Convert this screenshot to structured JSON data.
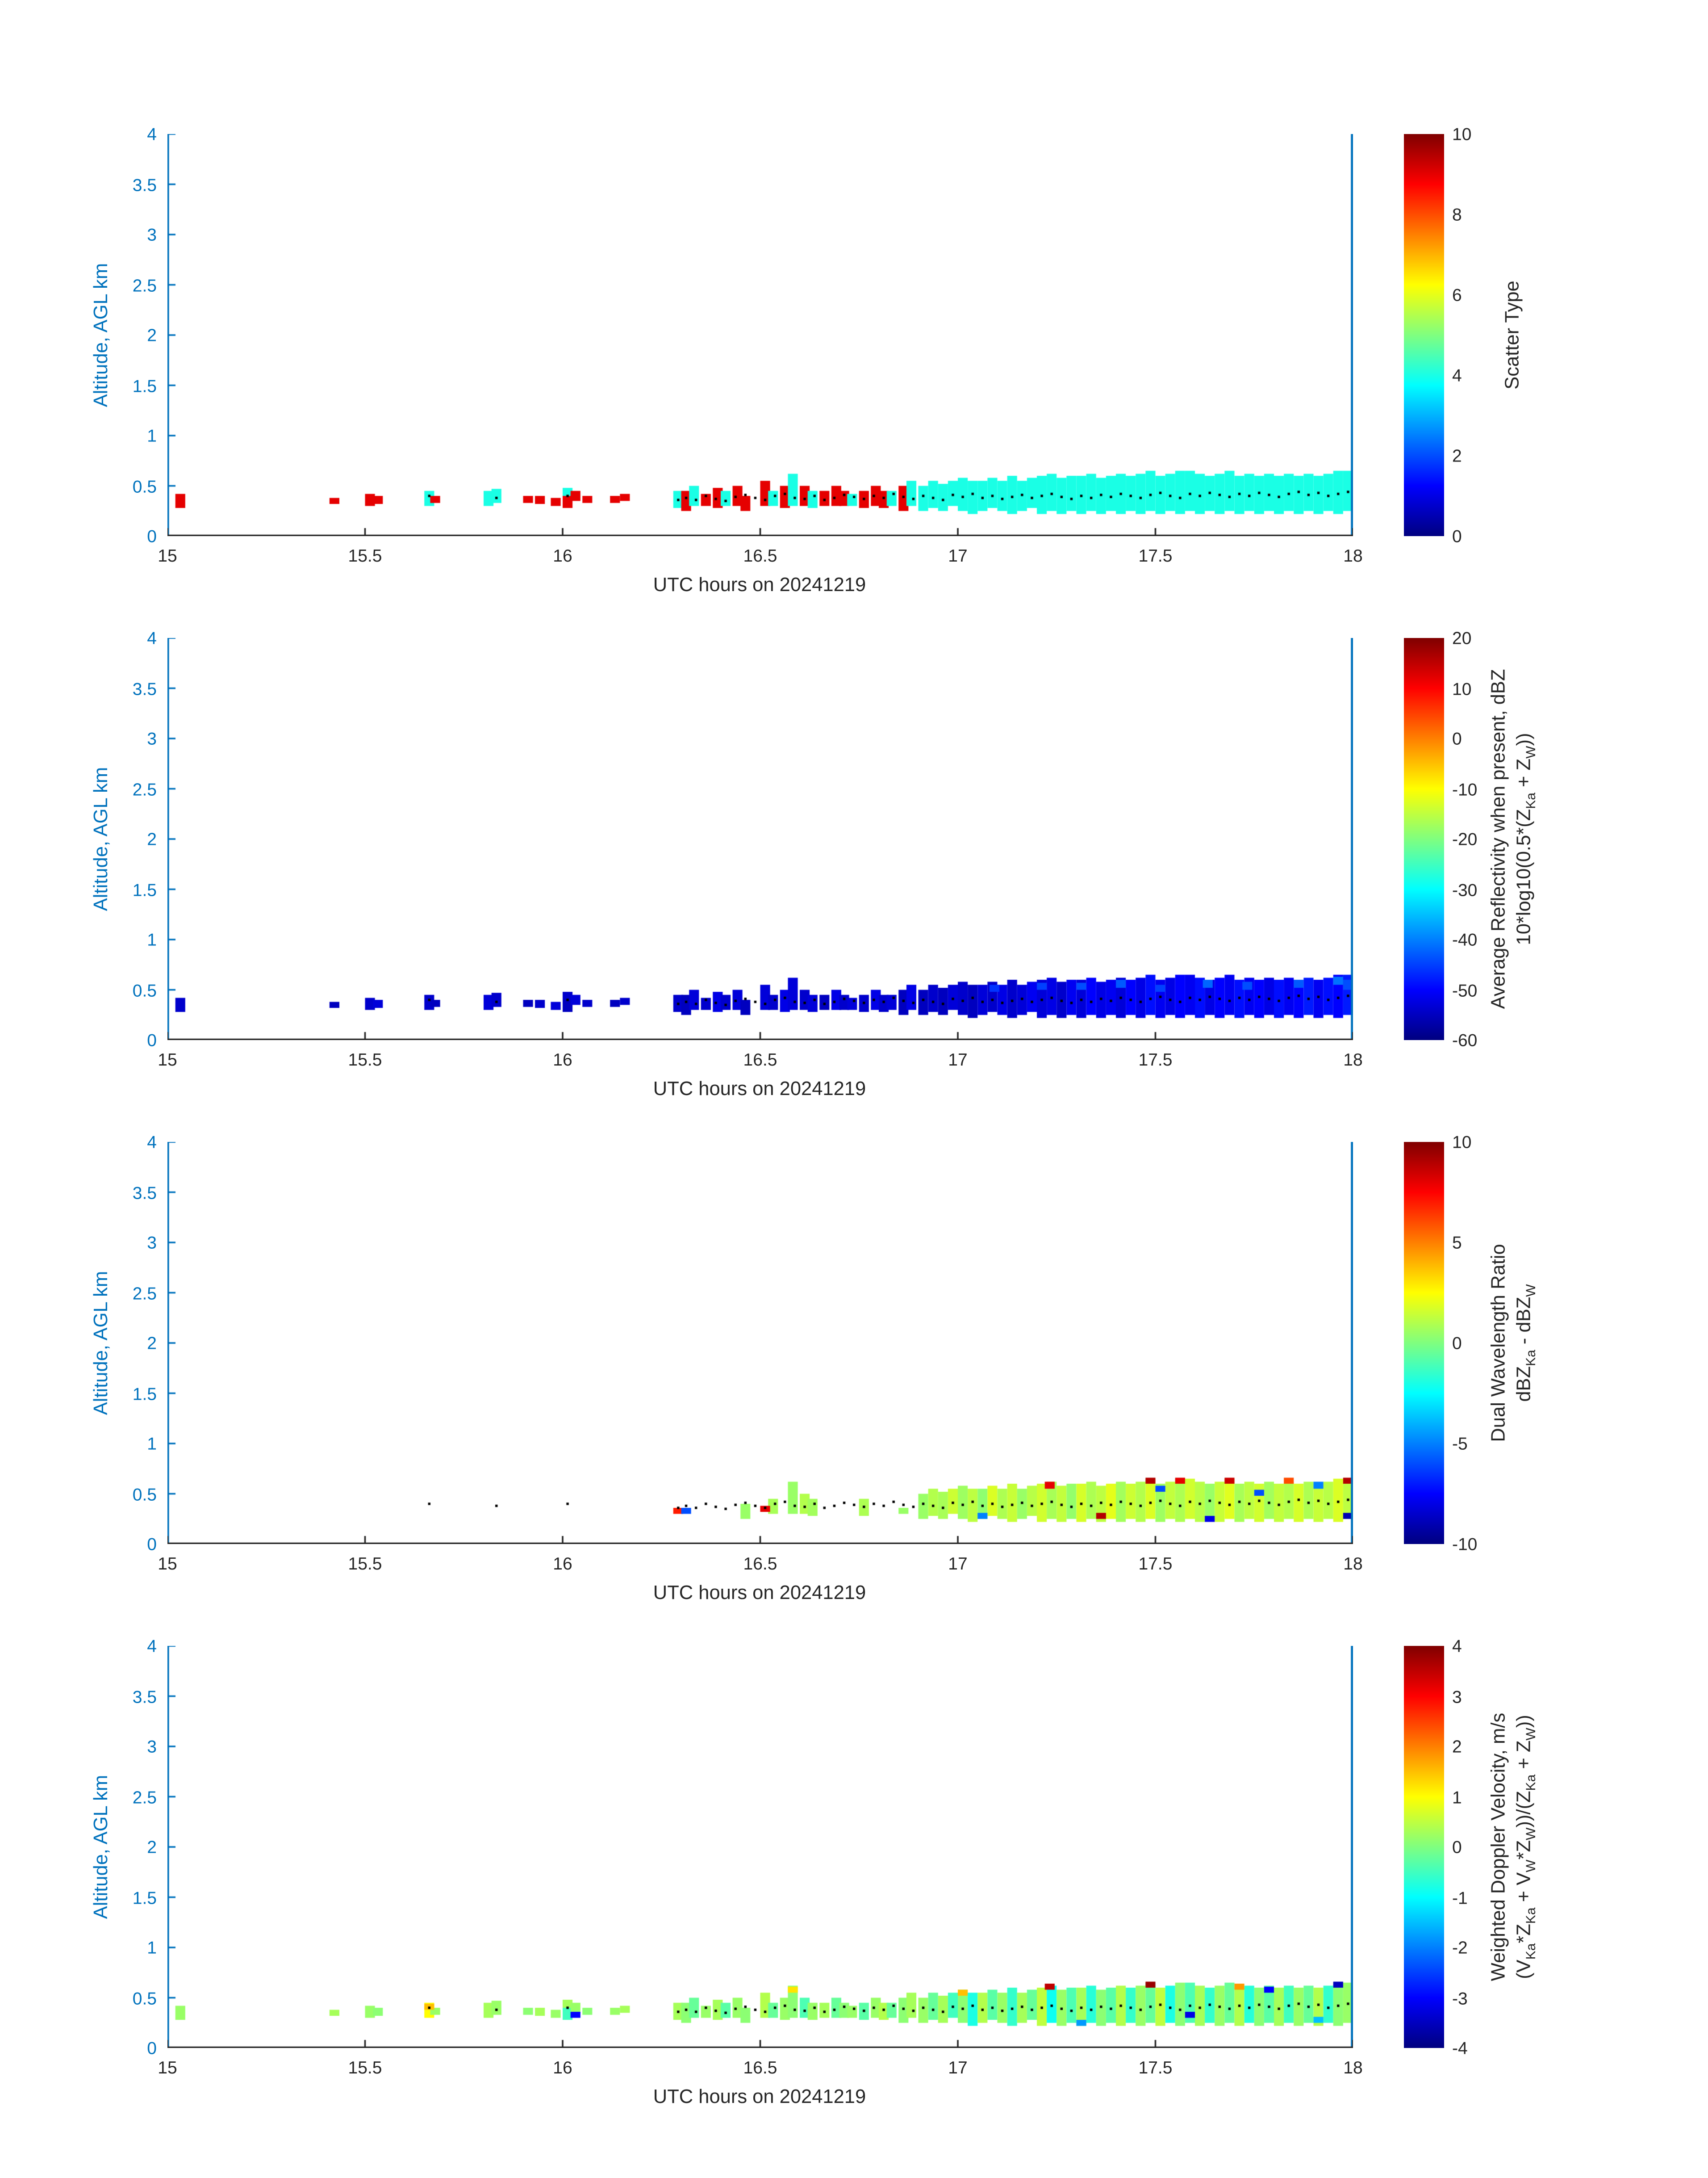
{
  "chart_data": {
    "type": "heatmap",
    "xlabel": "UTC hours on 20241219",
    "ylabel": "Altitude, AGL km",
    "xlim": [
      15,
      18
    ],
    "ylim": [
      0,
      4
    ],
    "xticks": [
      15,
      15.5,
      16,
      16.5,
      17,
      17.5,
      18
    ],
    "xtick_labels": [
      "15",
      "15.5",
      "16",
      "16.5",
      "17",
      "17.5",
      "18"
    ],
    "yticks": [
      0,
      0.5,
      1,
      1.5,
      2,
      2.5,
      3,
      3.5,
      4
    ],
    "ytick_labels": [
      "0",
      "0.5",
      "1",
      "1.5",
      "2",
      "2.5",
      "3",
      "3.5",
      "4"
    ],
    "colormap": "jet",
    "grid": false,
    "colors": {
      "axis_y": "#0072BD",
      "axis_x": "#262626",
      "end_line": "#0072BD",
      "dot": "#000000",
      "background": "#ffffff"
    },
    "cell_dt": 0.025,
    "panels": [
      {
        "id": "scatter-type",
        "clim": [
          0,
          10
        ],
        "cticks": [
          0,
          2,
          4,
          6,
          8,
          10
        ],
        "cbar_title": [
          [
            {
              "t": "Scatter Type"
            }
          ]
        ]
      },
      {
        "id": "average-reflectivity",
        "clim": [
          -60,
          20
        ],
        "cticks": [
          -60,
          -50,
          -40,
          -30,
          -20,
          -10,
          0,
          10,
          20
        ],
        "cbar_title": [
          [
            {
              "t": "Average Reflectivity when present, dBZ"
            }
          ],
          [
            {
              "t": "10*log10(0.5*(Z"
            },
            {
              "s": "Ka"
            },
            {
              "t": " + Z"
            },
            {
              "s": "W"
            },
            {
              "t": "))"
            }
          ]
        ]
      },
      {
        "id": "dual-wavelength-ratio",
        "clim": [
          -10,
          10
        ],
        "cticks": [
          -10,
          -5,
          0,
          5,
          10
        ],
        "cbar_title": [
          [
            {
              "t": "Dual Wavelength Ratio"
            }
          ],
          [
            {
              "t": "dBZ"
            },
            {
              "s": "Ka"
            },
            {
              "t": " - dBZ"
            },
            {
              "s": "W"
            }
          ]
        ]
      },
      {
        "id": "weighted-doppler-velocity",
        "clim": [
          -4,
          4
        ],
        "cticks": [
          -4,
          -3,
          -2,
          -1,
          0,
          1,
          2,
          3,
          4
        ],
        "cbar_title": [
          [
            {
              "t": "Weighted Doppler Velocity, m/s"
            }
          ],
          [
            {
              "t": "(V"
            },
            {
              "s": "Ka"
            },
            {
              "t": "*Z"
            },
            {
              "s": "Ka"
            },
            {
              "t": " + V"
            },
            {
              "s": "W"
            },
            {
              "t": "*Z"
            },
            {
              "s": "W"
            },
            {
              "t": "))/(Z"
            },
            {
              "s": "Ka"
            },
            {
              "t": " + Z"
            },
            {
              "s": "W"
            },
            {
              "t": "))"
            }
          ]
        ]
      }
    ],
    "cells_format": [
      "t_utc_hours",
      "alt_bottom_km",
      "alt_top_km",
      "scatter_type",
      "reflectivity_dBZ",
      "dwr_dB",
      "doppler_ms"
    ],
    "cells": [
      [
        15.02,
        0.28,
        0.42,
        9,
        -54,
        null,
        0.2
      ],
      [
        15.41,
        0.32,
        0.38,
        9,
        -55,
        null,
        0.3
      ],
      [
        15.5,
        0.3,
        0.42,
        9,
        -54,
        null,
        0.2
      ],
      [
        15.52,
        0.32,
        0.4,
        9,
        -53,
        null,
        0.1
      ],
      [
        15.65,
        0.3,
        0.45,
        4,
        -54,
        null,
        1.0
      ],
      [
        15.665,
        0.33,
        0.4,
        9,
        -55,
        null,
        0.2
      ],
      [
        15.8,
        0.3,
        0.45,
        4,
        -53,
        null,
        0.3
      ],
      [
        15.82,
        0.33,
        0.47,
        4,
        -54,
        null,
        0.2
      ],
      [
        15.9,
        0.33,
        0.4,
        9,
        -55,
        null,
        0.1
      ],
      [
        15.93,
        0.32,
        0.4,
        9,
        -54,
        null,
        0.3
      ],
      [
        15.97,
        0.3,
        0.38,
        9,
        -53,
        null,
        0.2
      ],
      [
        16.0,
        0.4,
        0.48,
        4,
        -54,
        null,
        0.3
      ],
      [
        16.0,
        0.28,
        0.4,
        9,
        -55,
        null,
        -0.5
      ],
      [
        16.02,
        0.35,
        0.45,
        9,
        -53,
        null,
        0.2
      ],
      [
        16.05,
        0.33,
        0.4,
        9,
        -54,
        null,
        0.1
      ],
      [
        16.12,
        0.33,
        0.4,
        9,
        -55,
        null,
        0.2
      ],
      [
        16.145,
        0.35,
        0.42,
        9,
        -54,
        null,
        0.3
      ],
      [
        16.28,
        0.28,
        0.45,
        4,
        -54,
        null,
        0.3
      ],
      [
        16.3,
        0.25,
        0.45,
        9,
        -55,
        null,
        0.1
      ],
      [
        16.32,
        0.3,
        0.5,
        4,
        -53,
        null,
        -0.2
      ],
      [
        16.35,
        0.3,
        0.42,
        9,
        -54,
        null,
        0.2
      ],
      [
        16.38,
        0.28,
        0.48,
        9,
        -52,
        null,
        0.3
      ],
      [
        16.4,
        0.3,
        0.45,
        4,
        -54,
        null,
        -0.3
      ],
      [
        16.43,
        0.3,
        0.5,
        9,
        -53,
        null,
        0.2
      ],
      [
        16.45,
        0.25,
        0.4,
        9,
        -55,
        0.5,
        0.1
      ],
      [
        16.5,
        0.3,
        0.55,
        9,
        -53,
        null,
        0.4
      ],
      [
        16.52,
        0.3,
        0.45,
        4,
        -54,
        0.8,
        -0.2
      ],
      [
        16.55,
        0.28,
        0.5,
        9,
        -52,
        null,
        0.2
      ],
      [
        16.57,
        0.3,
        0.62,
        4,
        -53,
        0.5,
        0.1
      ],
      [
        16.6,
        0.3,
        0.5,
        9,
        -54,
        1.0,
        -0.4
      ],
      [
        16.62,
        0.28,
        0.45,
        4,
        -53,
        0.7,
        0.2
      ],
      [
        16.65,
        0.3,
        0.45,
        9,
        -55,
        null,
        0.3
      ],
      [
        16.68,
        0.3,
        0.5,
        9,
        -52,
        null,
        -0.2
      ],
      [
        16.7,
        0.3,
        0.45,
        9,
        -54,
        null,
        0.1
      ],
      [
        16.72,
        0.3,
        0.42,
        4,
        -53,
        null,
        0.2
      ],
      [
        16.75,
        0.28,
        0.45,
        9,
        -54,
        0.9,
        -0.3
      ],
      [
        16.78,
        0.3,
        0.5,
        9,
        -52,
        null,
        0.2
      ],
      [
        16.8,
        0.28,
        0.45,
        9,
        -54,
        null,
        0.4
      ],
      [
        16.82,
        0.3,
        0.45,
        4,
        -53,
        null,
        -0.2
      ],
      [
        16.85,
        0.25,
        0.5,
        9,
        -55,
        null,
        0.1
      ],
      [
        16.87,
        0.3,
        0.55,
        4,
        -52,
        null,
        0.3
      ],
      [
        16.9,
        0.25,
        0.5,
        4,
        -55,
        0.5,
        0.2
      ],
      [
        16.925,
        0.28,
        0.55,
        4,
        -54,
        1.0,
        -0.2
      ],
      [
        16.95,
        0.25,
        0.52,
        4,
        -55,
        0.8,
        0.3
      ],
      [
        16.975,
        0.3,
        0.55,
        4,
        -53,
        1.5,
        -0.5
      ],
      [
        17.0,
        0.25,
        0.58,
        4,
        -54,
        0.6,
        0.1
      ],
      [
        17.025,
        0.22,
        0.55,
        4,
        -55,
        1.2,
        -0.8
      ],
      [
        17.05,
        0.25,
        0.55,
        4,
        -53,
        0.3,
        0.4
      ],
      [
        17.075,
        0.28,
        0.58,
        4,
        -54,
        1.8,
        -0.3
      ],
      [
        17.1,
        0.25,
        0.55,
        4,
        -52,
        0.9,
        0.2
      ],
      [
        17.125,
        0.22,
        0.6,
        4,
        -54,
        1.4,
        -0.6
      ],
      [
        17.15,
        0.25,
        0.55,
        4,
        -53,
        0.5,
        0.3
      ],
      [
        17.175,
        0.28,
        0.58,
        4,
        -51,
        1.1,
        -0.2
      ],
      [
        17.2,
        0.22,
        0.6,
        4,
        -53,
        1.6,
        0.5
      ],
      [
        17.225,
        0.25,
        0.62,
        4,
        -52,
        0.8,
        -0.9
      ],
      [
        17.25,
        0.22,
        0.58,
        4,
        -54,
        1.3,
        0.2
      ],
      [
        17.275,
        0.25,
        0.6,
        4,
        -51,
        0.4,
        -0.4
      ],
      [
        17.3,
        0.22,
        0.6,
        4,
        -53,
        1.7,
        0.3
      ],
      [
        17.325,
        0.25,
        0.62,
        4,
        -50,
        0.9,
        -0.7
      ],
      [
        17.35,
        0.22,
        0.58,
        4,
        -52,
        1.2,
        0.1
      ],
      [
        17.375,
        0.25,
        0.6,
        4,
        -51,
        2.0,
        -0.3
      ],
      [
        17.4,
        0.22,
        0.62,
        4,
        -53,
        0.7,
        0.4
      ],
      [
        17.425,
        0.25,
        0.6,
        4,
        -50,
        1.5,
        -0.6
      ],
      [
        17.45,
        0.22,
        0.62,
        4,
        -52,
        1.0,
        0.2
      ],
      [
        17.475,
        0.25,
        0.65,
        4,
        -49,
        1.8,
        -0.2
      ],
      [
        17.5,
        0.22,
        0.6,
        4,
        -51,
        0.6,
        0.5
      ],
      [
        17.525,
        0.25,
        0.62,
        4,
        -52,
        1.3,
        -0.8
      ],
      [
        17.55,
        0.22,
        0.65,
        4,
        -50,
        0.9,
        0.1
      ],
      [
        17.575,
        0.25,
        0.65,
        4,
        -51,
        1.6,
        -0.4
      ],
      [
        17.6,
        0.22,
        0.62,
        4,
        -49,
        1.1,
        0.3
      ],
      [
        17.625,
        0.25,
        0.6,
        4,
        -52,
        0.5,
        -0.6
      ],
      [
        17.65,
        0.22,
        0.62,
        4,
        -50,
        1.4,
        0.2
      ],
      [
        17.675,
        0.25,
        0.65,
        4,
        -51,
        1.9,
        -0.2
      ],
      [
        17.7,
        0.22,
        0.6,
        4,
        -49,
        0.8,
        0.4
      ],
      [
        17.725,
        0.25,
        0.62,
        4,
        -51,
        1.2,
        -0.7
      ],
      [
        17.75,
        0.22,
        0.6,
        4,
        -50,
        1.6,
        0.1
      ],
      [
        17.775,
        0.25,
        0.62,
        4,
        -52,
        0.7,
        -0.3
      ],
      [
        17.8,
        0.22,
        0.6,
        4,
        -49,
        1.3,
        0.3
      ],
      [
        17.825,
        0.25,
        0.62,
        4,
        -51,
        1.0,
        -0.5
      ],
      [
        17.85,
        0.22,
        0.6,
        4,
        -50,
        1.7,
        0.2
      ],
      [
        17.875,
        0.25,
        0.62,
        4,
        -48,
        0.9,
        -0.2
      ],
      [
        17.9,
        0.22,
        0.6,
        4,
        -51,
        1.4,
        0.4
      ],
      [
        17.925,
        0.25,
        0.62,
        4,
        -49,
        1.1,
        -0.6
      ],
      [
        17.95,
        0.22,
        0.65,
        4,
        -50,
        1.8,
        0.1
      ],
      [
        17.975,
        0.25,
        0.65,
        4,
        -48,
        1.2,
        0.2
      ]
    ],
    "extra_cells_format": [
      "panel_index",
      "t_utc_hours",
      "alt_bottom_km",
      "alt_top_km",
      "value"
    ],
    "extra_cells": [
      [
        1,
        17.08,
        0.48,
        0.55,
        -46
      ],
      [
        1,
        17.2,
        0.5,
        0.57,
        -45
      ],
      [
        1,
        17.3,
        0.5,
        0.57,
        -44
      ],
      [
        1,
        17.4,
        0.52,
        0.6,
        -43
      ],
      [
        1,
        17.5,
        0.48,
        0.55,
        -45
      ],
      [
        1,
        17.62,
        0.52,
        0.6,
        -42
      ],
      [
        1,
        17.72,
        0.5,
        0.58,
        -44
      ],
      [
        1,
        17.85,
        0.52,
        0.6,
        -43
      ],
      [
        1,
        17.95,
        0.55,
        0.63,
        -41
      ],
      [
        1,
        17.975,
        0.5,
        0.6,
        -44
      ],
      [
        2,
        16.28,
        0.3,
        0.36,
        7
      ],
      [
        2,
        16.3,
        0.3,
        0.36,
        -6
      ],
      [
        2,
        16.5,
        0.32,
        0.38,
        8
      ],
      [
        2,
        16.85,
        0.3,
        0.36,
        0.5
      ],
      [
        2,
        17.05,
        0.25,
        0.31,
        -5
      ],
      [
        2,
        17.22,
        0.55,
        0.62,
        8
      ],
      [
        2,
        17.35,
        0.25,
        0.31,
        9
      ],
      [
        2,
        17.475,
        0.6,
        0.66,
        9
      ],
      [
        2,
        17.5,
        0.52,
        0.58,
        -6
      ],
      [
        2,
        17.55,
        0.6,
        0.66,
        8
      ],
      [
        2,
        17.625,
        0.22,
        0.28,
        -8
      ],
      [
        2,
        17.675,
        0.6,
        0.66,
        8.5
      ],
      [
        2,
        17.75,
        0.48,
        0.54,
        -6
      ],
      [
        2,
        17.825,
        0.6,
        0.66,
        6
      ],
      [
        2,
        17.9,
        0.55,
        0.62,
        -5
      ],
      [
        2,
        17.975,
        0.6,
        0.66,
        9
      ],
      [
        2,
        17.975,
        0.25,
        0.31,
        -9
      ],
      [
        3,
        15.65,
        0.38,
        0.44,
        1.5
      ],
      [
        3,
        16.02,
        0.3,
        0.36,
        -3
      ],
      [
        3,
        16.57,
        0.55,
        0.61,
        1.2
      ],
      [
        3,
        17.0,
        0.52,
        0.58,
        1.5
      ],
      [
        3,
        17.22,
        0.58,
        0.64,
        3.5
      ],
      [
        3,
        17.3,
        0.22,
        0.28,
        -1.8
      ],
      [
        3,
        17.475,
        0.6,
        0.66,
        3.8
      ],
      [
        3,
        17.575,
        0.3,
        0.36,
        -3.2
      ],
      [
        3,
        17.7,
        0.58,
        0.64,
        1.8
      ],
      [
        3,
        17.775,
        0.55,
        0.61,
        -3
      ],
      [
        3,
        17.9,
        0.25,
        0.31,
        -1.5
      ],
      [
        3,
        17.95,
        0.6,
        0.66,
        -3.5
      ]
    ],
    "dots": {
      "t0": 16.3,
      "dt": 0.025,
      "alts": [
        0.38,
        0.36,
        0.4,
        0.37,
        0.35,
        0.39,
        0.41,
        0.38,
        0.36,
        0.4,
        0.42,
        0.38,
        0.37,
        0.4,
        0.36,
        0.38,
        0.41,
        0.39,
        0.37,
        0.4,
        0.38,
        0.42,
        0.39,
        0.37,
        0.4,
        0.38,
        0.36,
        0.41,
        0.39,
        0.42,
        0.38,
        0.4,
        0.37,
        0.39,
        0.41,
        0.38,
        0.4,
        0.42,
        0.39,
        0.37,
        0.4,
        0.38,
        0.41,
        0.39,
        0.42,
        0.4,
        0.38,
        0.41,
        0.43,
        0.4,
        0.38,
        0.42,
        0.4,
        0.43,
        0.41,
        0.39,
        0.42,
        0.4,
        0.43,
        0.41,
        0.39,
        0.42,
        0.44,
        0.41,
        0.43,
        0.4,
        0.42,
        0.44
      ]
    },
    "extra_dots": [
      [
        15.65,
        0.4
      ],
      [
        15.82,
        0.38
      ],
      [
        16.0,
        0.4
      ],
      [
        16.28,
        0.36
      ]
    ]
  }
}
